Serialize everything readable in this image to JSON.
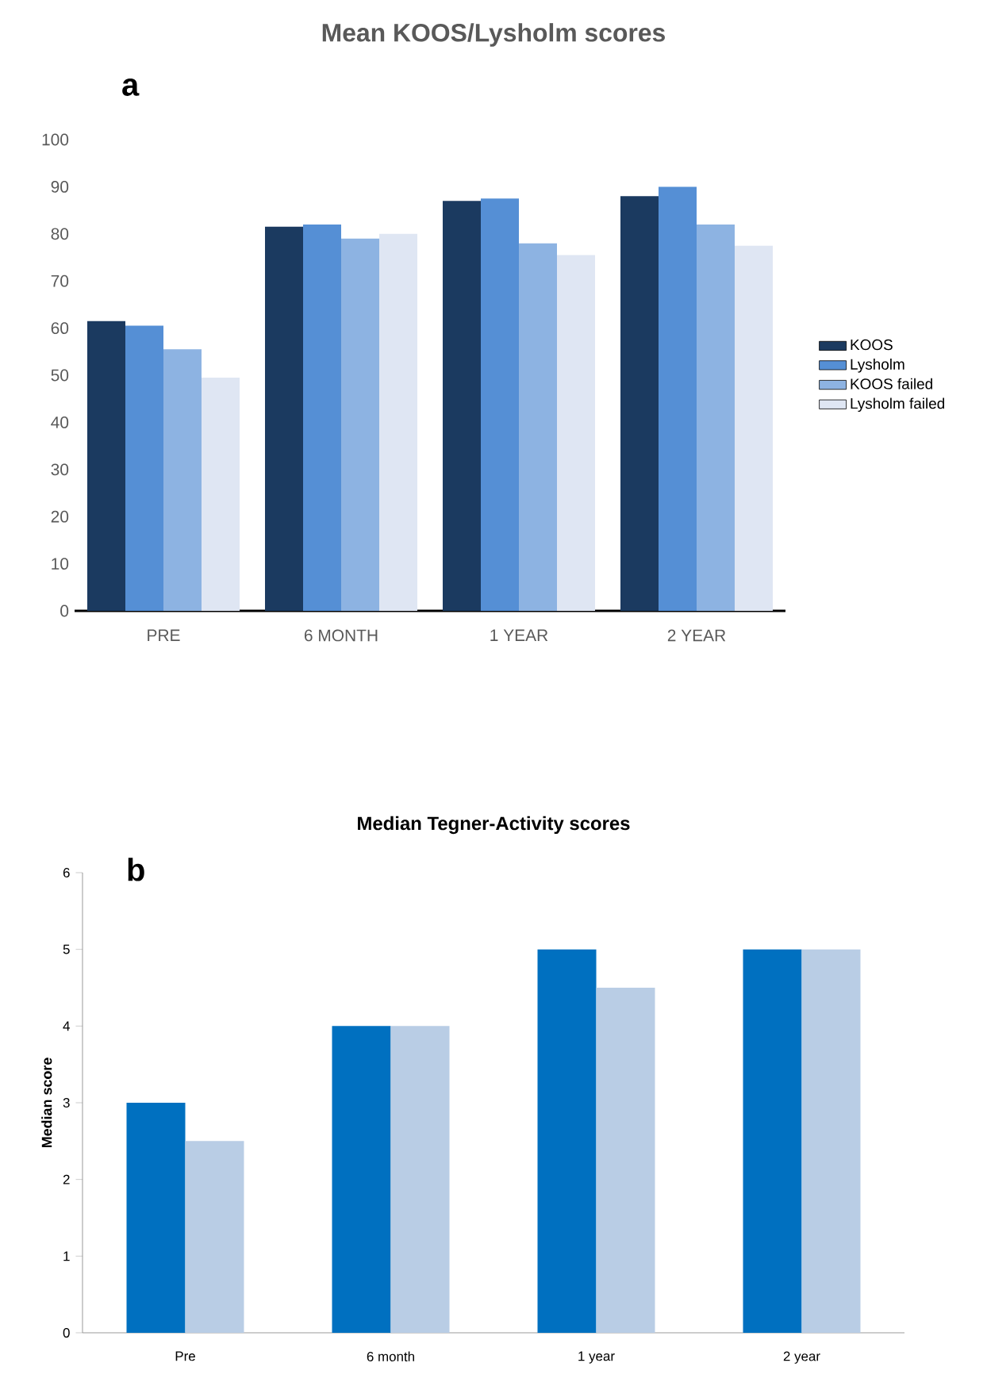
{
  "chart_data": [
    {
      "type": "bar",
      "title": "Mean KOOS/Lysholm scores",
      "annotations": [
        "a"
      ],
      "categories": [
        "PRE",
        "6 MONTH",
        "1 YEAR",
        "2 YEAR"
      ],
      "series": [
        {
          "name": "KOOS",
          "color": "#1b3a60",
          "values": [
            61.5,
            81.5,
            87,
            88
          ]
        },
        {
          "name": "Lysholm",
          "color": "#558fd5",
          "values": [
            60.5,
            82,
            87.5,
            90
          ]
        },
        {
          "name": "KOOS failed",
          "color": "#8db3e2",
          "values": [
            55.5,
            79,
            78,
            82
          ]
        },
        {
          "name": "Lysholm failed",
          "color": "#dfe6f3",
          "values": [
            49.5,
            80,
            75.5,
            77.5
          ]
        }
      ],
      "ylim": [
        0,
        100
      ],
      "yticks": [
        0,
        10,
        20,
        30,
        40,
        50,
        60,
        70,
        80,
        90,
        100
      ],
      "legend": "right"
    },
    {
      "type": "bar",
      "title": "Median Tegner-Activity scores",
      "annotations": [
        "b"
      ],
      "ylabel": "Median score",
      "categories": [
        "Pre",
        "6 month",
        "1 year",
        "2 year"
      ],
      "series": [
        {
          "color": "#0070c0",
          "values": [
            3,
            4,
            5,
            5
          ]
        },
        {
          "color": "#b9cde5",
          "values": [
            2.5,
            4,
            4.5,
            5
          ]
        }
      ],
      "ylim": [
        0,
        6
      ],
      "yticks": [
        0,
        1,
        2,
        3,
        4,
        5,
        6
      ]
    }
  ]
}
